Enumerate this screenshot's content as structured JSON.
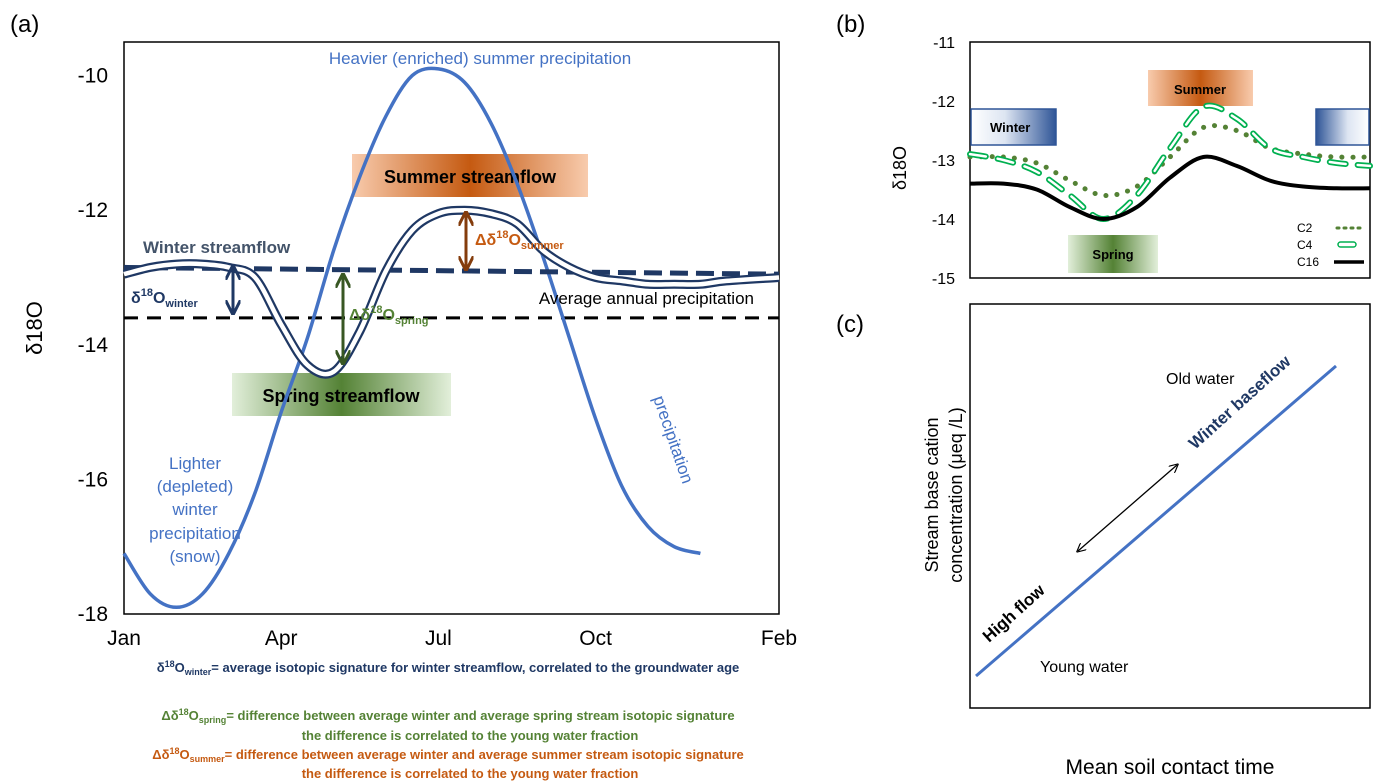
{
  "chart_data": [
    {
      "panel": "(a)",
      "type": "line",
      "ylabel": "δ18O",
      "x_categories": [
        "Jan",
        "Apr",
        "Jul",
        "Oct",
        "Feb"
      ],
      "x_positions": [
        0,
        3,
        6,
        9,
        12.5
      ],
      "ylim": [
        -18,
        -9.5
      ],
      "yticks": [
        -10,
        -12,
        -14,
        -16,
        -18
      ],
      "series": [
        {
          "name": "precipitation",
          "color": "#4472C4",
          "x": [
            0,
            0.5,
            1,
            1.5,
            2,
            2.5,
            3,
            3.5,
            4,
            4.5,
            5,
            5.5,
            6,
            6.5,
            7,
            7.5,
            8,
            8.5,
            9,
            9.5,
            10,
            10.5,
            11
          ],
          "y": [
            -17.1,
            -17.7,
            -17.9,
            -17.7,
            -17.1,
            -16.2,
            -15.0,
            -13.9,
            -12.6,
            -11.5,
            -10.6,
            -10.0,
            -9.9,
            -10.1,
            -10.7,
            -11.6,
            -12.7,
            -13.9,
            -15.1,
            -16.1,
            -16.7,
            -17.0,
            -17.1
          ]
        },
        {
          "name": "stream",
          "color": "#1F3864",
          "x": [
            0,
            0.5,
            1,
            1.5,
            2,
            2.5,
            3,
            3.5,
            4,
            4.5,
            5,
            5.5,
            6,
            6.5,
            7,
            7.5,
            8,
            8.5,
            9,
            9.5,
            10,
            10.5,
            11,
            11.5,
            12.5
          ],
          "y": [
            -12.95,
            -12.85,
            -12.8,
            -12.8,
            -12.85,
            -13.0,
            -13.7,
            -14.3,
            -14.4,
            -13.8,
            -12.9,
            -12.3,
            -12.05,
            -12.0,
            -12.05,
            -12.2,
            -12.6,
            -12.85,
            -13.0,
            -13.05,
            -13.1,
            -13.1,
            -13.1,
            -13.05,
            -13.0
          ]
        },
        {
          "name": "Winter streamflow",
          "color": "#1F3864",
          "style": "dashed",
          "x": [
            0,
            12.5
          ],
          "y": [
            -12.85,
            -12.95
          ]
        },
        {
          "name": "Average annual precipitation",
          "color": "#000000",
          "style": "dashed",
          "x": [
            0,
            12.5
          ],
          "y": [
            -13.6,
            -13.6
          ]
        }
      ],
      "annotations": {
        "heavier": "Heavier (enriched) summer precipitation",
        "lighter_lines": [
          "Lighter",
          "(depleted)",
          "winter",
          "precipitation",
          "(snow)"
        ],
        "precip_rot": "precipitation",
        "winter_stream": "Winter streamflow",
        "avg_precip": "Average annual precipitation",
        "summer_box": "Summer streamflow",
        "spring_box": "Spring streamflow",
        "d_winter_base": "δ",
        "d_winter_sup": "18",
        "d_winter_mid": "O",
        "d_winter_sub": "winter",
        "d_spring_base": "Δδ",
        "d_spring_sup": "18",
        "d_spring_mid": "O",
        "d_spring_sub": "spring",
        "d_summer_base": "Δδ",
        "d_summer_sup": "18",
        "d_summer_mid": "O",
        "d_summer_sub": "summer"
      }
    },
    {
      "panel": "(b)",
      "type": "line",
      "ylabel": "δ18O",
      "ylim": [
        -15,
        -11
      ],
      "yticks": [
        -11,
        -12,
        -13,
        -14,
        -15
      ],
      "series": [
        {
          "name": "C2",
          "color": "#548235",
          "style": "dotted",
          "x": [
            0,
            1,
            2,
            3,
            4,
            5,
            6,
            7,
            8,
            9,
            10,
            11,
            12
          ],
          "y": [
            -12.95,
            -12.95,
            -13.05,
            -13.35,
            -13.6,
            -13.45,
            -12.95,
            -12.45,
            -12.5,
            -12.8,
            -12.9,
            -12.95,
            -12.95
          ]
        },
        {
          "name": "C4",
          "color": "#00B050",
          "style": "dashed",
          "x": [
            0,
            1,
            2,
            3,
            4,
            5,
            6,
            7,
            8,
            9,
            10,
            11,
            12
          ],
          "y": [
            -12.9,
            -13.0,
            -13.2,
            -13.6,
            -14.0,
            -13.6,
            -12.8,
            -12.1,
            -12.3,
            -12.8,
            -12.95,
            -13.05,
            -13.1
          ]
        },
        {
          "name": "C16",
          "color": "#000000",
          "style": "solid",
          "x": [
            0,
            1,
            2,
            3,
            4,
            5,
            6,
            7,
            8,
            9,
            10,
            11,
            12
          ],
          "y": [
            -13.4,
            -13.4,
            -13.5,
            -13.8,
            -14.0,
            -13.8,
            -13.3,
            -12.95,
            -13.1,
            -13.35,
            -13.45,
            -13.48,
            -13.48
          ]
        }
      ],
      "labels": {
        "winter": "Winter",
        "summer": "Summer",
        "spring": "Spring"
      }
    },
    {
      "panel": "(c)",
      "type": "line",
      "xlabel": "Mean soil contact time",
      "ylabel_lines": [
        "Stream base cation",
        "concentration (μeq /L)"
      ],
      "series": [
        {
          "name": "line",
          "color": "#4472C4",
          "x": [
            0,
            1
          ],
          "y": [
            0,
            1
          ]
        }
      ],
      "annotations": {
        "old": "Old water",
        "young": "Young water",
        "winter_baseflow": "Winter baseflow",
        "high_flow": "High flow"
      }
    }
  ],
  "footnotes": [
    {
      "color": "#1F3864",
      "base": "δ",
      "sup": "18",
      "mid": "O",
      "sub": "winter",
      "rest": "= average isotopic signature for winter streamflow, correlated to the groundwater age",
      "line2": ""
    },
    {
      "color": "#548235",
      "base": "Δδ",
      "sup": "18",
      "mid": "O",
      "sub": "spring",
      "rest": "= difference between average winter and average spring stream isotopic signature",
      "line2": "the difference is correlated to the young water fraction"
    },
    {
      "color": "#C55A11",
      "base": "Δδ",
      "sup": "18",
      "mid": "O",
      "sub": "summer",
      "rest": "= difference between average winter and average summer stream isotopic signature",
      "line2": "the difference is correlated to the young water fraction"
    }
  ]
}
